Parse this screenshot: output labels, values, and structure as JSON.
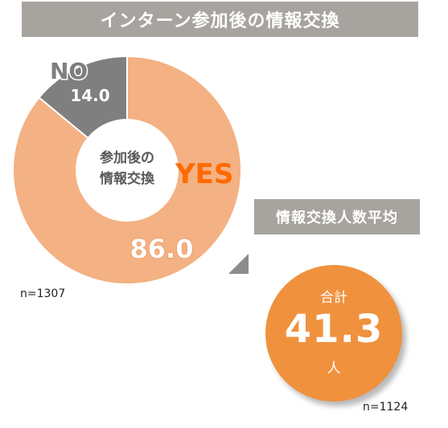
{
  "title": "インターン参加後の情報交換",
  "chart_data": {
    "type": "donut",
    "center_label_lines": [
      "参加後の",
      "情報交換"
    ],
    "slices": [
      {
        "label": "YES",
        "value": 86.0,
        "value_text": "86.0",
        "color": "#f4b183"
      },
      {
        "label": "NO",
        "value": 14.0,
        "value_text": "14.0",
        "color": "#7f7f7f"
      }
    ],
    "yes_label_color": "#ff6a00",
    "no_label_color": "#7f7f7f",
    "sample": "n=1307"
  },
  "average": {
    "title": "情報交換人数平均",
    "label": "合計",
    "value": "41.3",
    "unit": "人",
    "color": "#f0913e",
    "sample": "n=1124"
  }
}
